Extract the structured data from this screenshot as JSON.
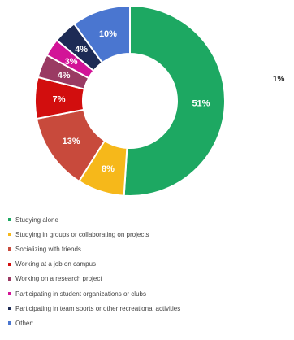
{
  "chart_data": {
    "type": "pie",
    "donut": true,
    "title": "",
    "categories": [
      "Studying alone",
      "Studying in groups or collaborating on projects",
      "Socializing with friends",
      "Working at a job on campus",
      "Working on a research project",
      "Participating in student organizations or clubs",
      "Participating in team sports or other recreational activities",
      "Other:"
    ],
    "values": [
      51,
      8,
      13,
      7,
      4,
      3,
      4,
      10
    ],
    "value_labels": [
      "51%",
      "8%",
      "13%",
      "7%",
      "4%",
      "3%",
      "4%",
      "10%"
    ],
    "colors": [
      "#1da862",
      "#f6b81a",
      "#c84a3c",
      "#d20e0e",
      "#9a3a63",
      "#d21497",
      "#1d2b55",
      "#4a76d0"
    ],
    "legend_position": "bottom",
    "side_label": "1%"
  }
}
